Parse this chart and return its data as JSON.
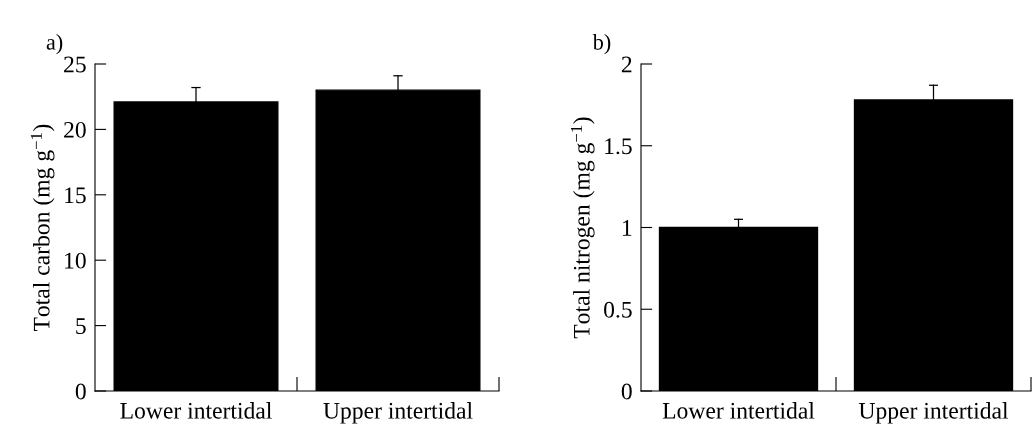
{
  "chart_data": [
    {
      "type": "bar",
      "title": "a)",
      "ylabel": "Total carbon (mg g$^{−1}$)",
      "categories": [
        "Lower intertidal",
        "Upper intertidal"
      ],
      "values": [
        22.1,
        23.0
      ],
      "errors": [
        [
          22.1,
          23.2
        ],
        [
          23.0,
          24.1
        ]
      ],
      "color": "#000000",
      "ylim": [
        0,
        25
      ],
      "yticks": [
        0,
        5,
        10,
        15,
        20,
        25
      ],
      "grid": false,
      "legend": false
    },
    {
      "type": "bar",
      "title": "b)",
      "ylabel": "Total nitrogen (mg g$^{−1}$)",
      "categories": [
        "Lower intertidal",
        "Upper intertidal"
      ],
      "values": [
        1.0,
        1.78
      ],
      "errors": [
        [
          1.0,
          1.05
        ],
        [
          1.78,
          1.87
        ]
      ],
      "color": "#000000",
      "ylim": [
        0,
        2
      ],
      "yticks": [
        0,
        0.5,
        1,
        1.5,
        2
      ],
      "grid": false,
      "legend": false
    }
  ]
}
